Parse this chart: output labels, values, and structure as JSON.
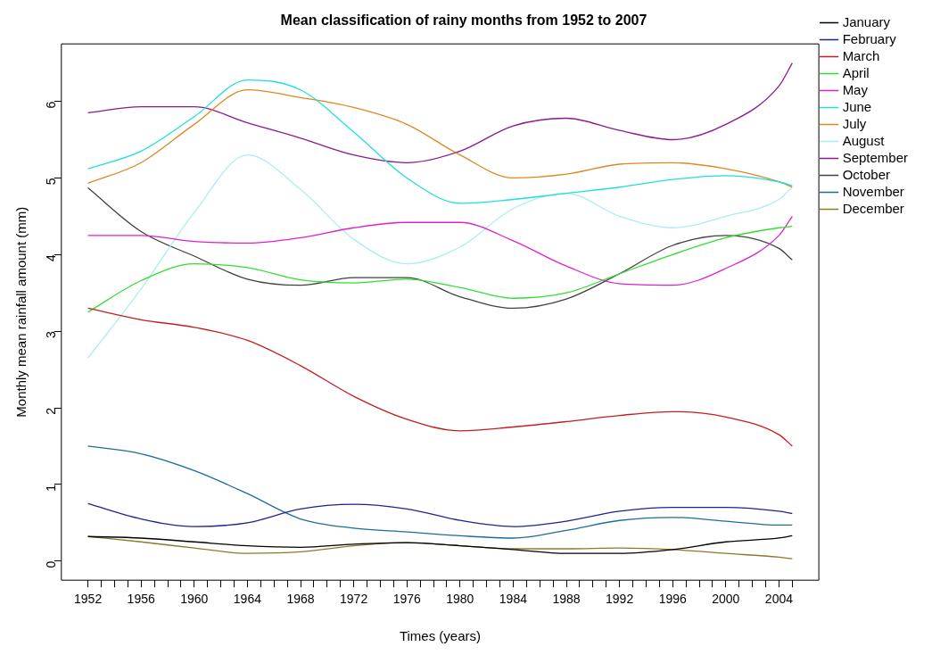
{
  "chart_data": {
    "type": "line",
    "title": "Mean classification of rainy months from 1952 to 2007",
    "xlabel": "Times (years)",
    "ylabel": "Monthly mean rainfall amount (mm)",
    "x": [
      1952,
      1956,
      1960,
      1964,
      1968,
      1972,
      1976,
      1980,
      1984,
      1988,
      1992,
      1996,
      2000,
      2004,
      2005
    ],
    "xlim": [
      1950,
      2007
    ],
    "ylim": [
      -0.25,
      6.75
    ],
    "xticks": [
      1952,
      {
        "value": 1953,
        "label": null
      },
      {
        "value": 1954,
        "label": null
      },
      {
        "value": 1955,
        "label": null
      },
      1956,
      {
        "value": 1957,
        "label": null
      },
      {
        "value": 1958,
        "label": null
      },
      {
        "value": 1959,
        "label": null
      },
      1960,
      {
        "value": 1961,
        "label": null
      },
      {
        "value": 1962,
        "label": null
      },
      {
        "value": 1963,
        "label": null
      },
      1964,
      {
        "value": 1965,
        "label": null
      },
      {
        "value": 1966,
        "label": null
      },
      {
        "value": 1967,
        "label": null
      },
      1968,
      {
        "value": 1969,
        "label": null
      },
      {
        "value": 1970,
        "label": null
      },
      {
        "value": 1971,
        "label": null
      },
      1972,
      {
        "value": 1973,
        "label": null
      },
      {
        "value": 1974,
        "label": null
      },
      {
        "value": 1975,
        "label": null
      },
      1976,
      {
        "value": 1977,
        "label": null
      },
      {
        "value": 1978,
        "label": null
      },
      {
        "value": 1979,
        "label": null
      },
      1980,
      {
        "value": 1981,
        "label": null
      },
      {
        "value": 1982,
        "label": null
      },
      {
        "value": 1983,
        "label": null
      },
      1984,
      {
        "value": 1985,
        "label": null
      },
      {
        "value": 1986,
        "label": null
      },
      {
        "value": 1987,
        "label": null
      },
      1988,
      {
        "value": 1989,
        "label": null
      },
      {
        "value": 1990,
        "label": null
      },
      {
        "value": 1991,
        "label": null
      },
      1992,
      {
        "value": 1993,
        "label": null
      },
      {
        "value": 1994,
        "label": null
      },
      {
        "value": 1995,
        "label": null
      },
      1996,
      {
        "value": 1997,
        "label": null
      },
      {
        "value": 1998,
        "label": null
      },
      {
        "value": 1999,
        "label": null
      },
      2000,
      {
        "value": 2001,
        "label": null
      },
      {
        "value": 2002,
        "label": null
      },
      {
        "value": 2003,
        "label": null
      },
      2004,
      {
        "value": 2005,
        "label": null
      }
    ],
    "yticks": [
      0,
      1,
      2,
      3,
      4,
      5,
      6
    ],
    "grid": false,
    "legend": "right",
    "marker": "none",
    "line_style": "solid",
    "series": [
      {
        "name": "January",
        "color": "#000000",
        "values": [
          0.32,
          0.3,
          0.25,
          0.2,
          0.18,
          0.22,
          0.24,
          0.2,
          0.15,
          0.1,
          0.1,
          0.15,
          0.25,
          0.3,
          0.33
        ]
      },
      {
        "name": "February",
        "color": "#22228b",
        "values": [
          0.75,
          0.55,
          0.45,
          0.5,
          0.68,
          0.74,
          0.68,
          0.53,
          0.45,
          0.52,
          0.65,
          0.7,
          0.7,
          0.65,
          0.62
        ]
      },
      {
        "name": "March",
        "color": "#c41e1e",
        "values": [
          3.3,
          3.15,
          3.05,
          2.88,
          2.55,
          2.15,
          1.85,
          1.7,
          1.75,
          1.82,
          1.9,
          1.95,
          1.88,
          1.65,
          1.5
        ]
      },
      {
        "name": "April",
        "color": "#33dd33",
        "values": [
          3.25,
          3.66,
          3.88,
          3.83,
          3.67,
          3.63,
          3.68,
          3.57,
          3.43,
          3.5,
          3.75,
          4.0,
          4.22,
          4.35,
          4.37
        ]
      },
      {
        "name": "May",
        "color": "#dd22cc",
        "values": [
          4.25,
          4.25,
          4.17,
          4.15,
          4.22,
          4.35,
          4.42,
          4.42,
          4.18,
          3.85,
          3.62,
          3.6,
          3.82,
          4.25,
          4.5
        ]
      },
      {
        "name": "June",
        "color": "#22dddd",
        "values": [
          5.12,
          5.35,
          5.8,
          6.28,
          6.15,
          5.6,
          5.0,
          4.67,
          4.72,
          4.8,
          4.88,
          4.98,
          5.03,
          4.95,
          4.9
        ]
      },
      {
        "name": "July",
        "color": "#dd8822",
        "values": [
          4.93,
          5.2,
          5.7,
          6.15,
          6.05,
          5.92,
          5.7,
          5.3,
          5.0,
          5.05,
          5.18,
          5.2,
          5.12,
          4.95,
          4.88
        ]
      },
      {
        "name": "August",
        "color": "#aaeeee",
        "values": [
          2.65,
          3.55,
          4.55,
          5.3,
          4.85,
          4.2,
          3.88,
          4.1,
          4.6,
          4.8,
          4.5,
          4.35,
          4.5,
          4.72,
          4.88
        ]
      },
      {
        "name": "September",
        "color": "#8b1a8b",
        "values": [
          5.85,
          5.93,
          5.93,
          5.72,
          5.52,
          5.3,
          5.2,
          5.35,
          5.68,
          5.78,
          5.62,
          5.5,
          5.7,
          6.2,
          6.5
        ]
      },
      {
        "name": "October",
        "color": "#404040",
        "values": [
          4.87,
          4.3,
          3.98,
          3.68,
          3.6,
          3.7,
          3.7,
          3.45,
          3.3,
          3.42,
          3.75,
          4.12,
          4.25,
          4.08,
          3.93
        ]
      },
      {
        "name": "November",
        "color": "#1a6e9a",
        "values": [
          1.5,
          1.4,
          1.18,
          0.88,
          0.55,
          0.43,
          0.38,
          0.33,
          0.3,
          0.4,
          0.53,
          0.57,
          0.52,
          0.47,
          0.47
        ]
      },
      {
        "name": "December",
        "color": "#8b7a2a",
        "values": [
          0.32,
          0.25,
          0.17,
          0.1,
          0.12,
          0.2,
          0.24,
          0.2,
          0.16,
          0.16,
          0.17,
          0.15,
          0.1,
          0.05,
          0.03
        ]
      }
    ]
  }
}
